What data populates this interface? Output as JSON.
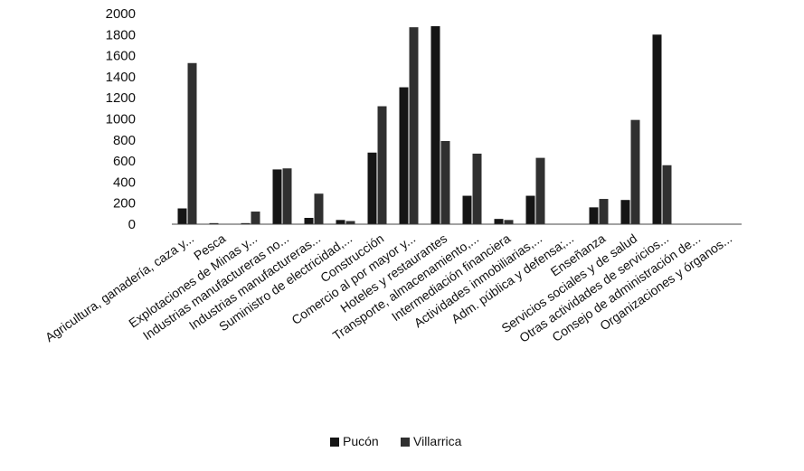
{
  "chart_data": {
    "type": "bar",
    "categories": [
      "Agricultura, ganadería, caza y...",
      "Pesca",
      "Explotaciones de Minas y...",
      "Industrias manufactureras no...",
      "Industrias manufactureras...",
      "Suministro de electricidad,...",
      "Construcción",
      "Comercio al por mayor y...",
      "Hoteles y restaurantes",
      "Transporte, almacenamiento,...",
      "Intermediación financiera",
      "Actividades inmobiliarias,...",
      "Adm. pública y defensa;...",
      "Enseñanza",
      "Servicios sociales y de salud",
      "Otras actividades de servicios...",
      "Consejo de administración de...",
      "Organizaciones y órganos..."
    ],
    "series": [
      {
        "name": "Pucón",
        "color": "#151515",
        "values": [
          150,
          10,
          10,
          520,
          60,
          40,
          680,
          1300,
          1880,
          270,
          50,
          270,
          0,
          160,
          230,
          1800,
          0,
          0
        ]
      },
      {
        "name": "Villarrica",
        "color": "#303030",
        "values": [
          1530,
          0,
          120,
          530,
          290,
          30,
          1120,
          1870,
          790,
          670,
          40,
          630,
          0,
          240,
          990,
          560,
          0,
          0
        ]
      }
    ],
    "yticks": [
      "0",
      "200",
      "400",
      "600",
      "800",
      "1000",
      "1200",
      "1400",
      "1600",
      "1800",
      "2000"
    ],
    "ylim": [
      0,
      2000
    ],
    "legend_position": "bottom",
    "grid": false
  }
}
